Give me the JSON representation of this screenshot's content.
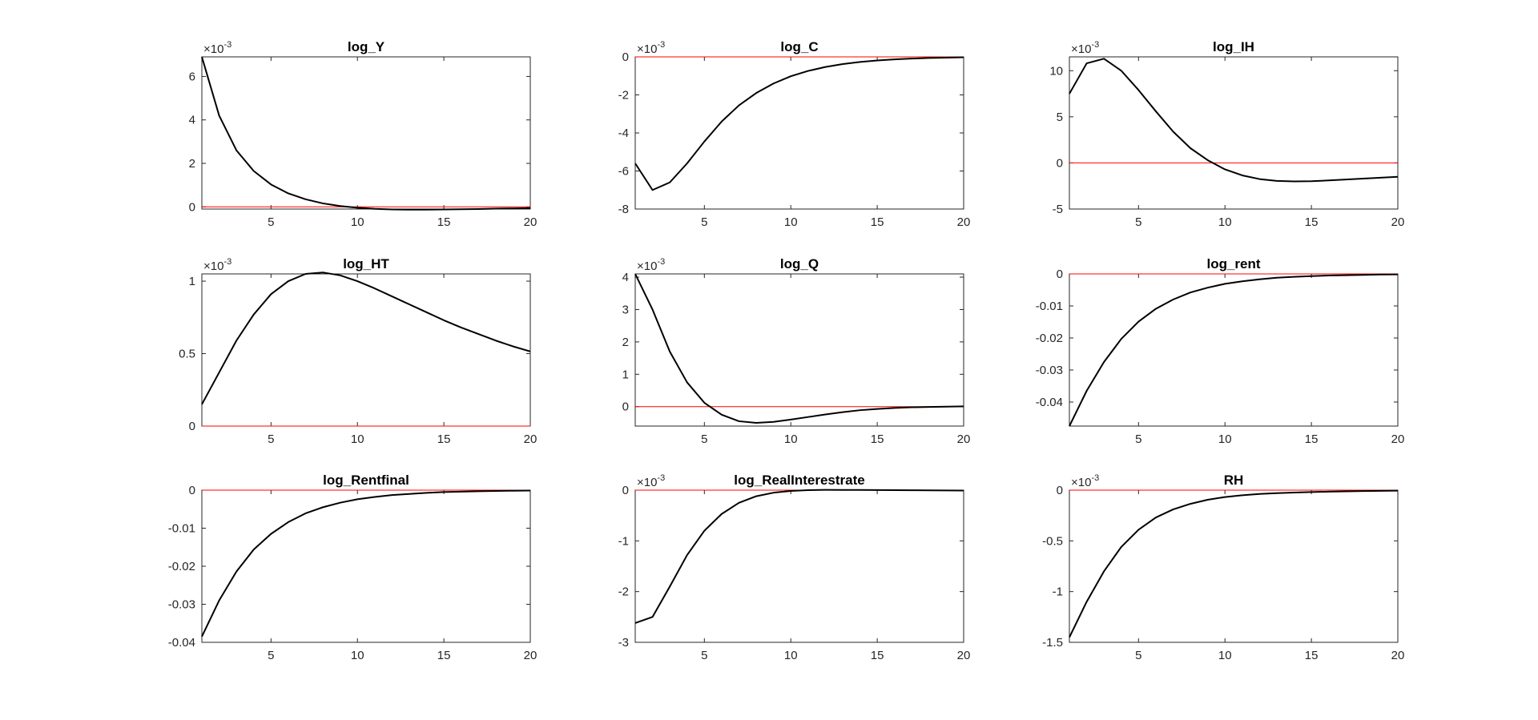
{
  "chart_data": [
    {
      "type": "line",
      "title": "log_Y",
      "exponent_label": "-3",
      "x": [
        1,
        2,
        3,
        4,
        5,
        6,
        7,
        8,
        9,
        10,
        11,
        12,
        13,
        14,
        15,
        16,
        17,
        18,
        19,
        20
      ],
      "xlim": [
        1,
        20
      ],
      "xticks": [
        5,
        10,
        15,
        20
      ],
      "ylim": [
        -0.1,
        6.9
      ],
      "yticks": [
        0,
        2,
        4,
        6
      ],
      "ytick_labels": [
        "0",
        "2",
        "4",
        "6"
      ],
      "series": [
        {
          "values": [
            6.9,
            4.2,
            2.6,
            1.65,
            1.03,
            0.62,
            0.35,
            0.16,
            0.04,
            -0.04,
            -0.09,
            -0.12,
            -0.13,
            -0.13,
            -0.12,
            -0.11,
            -0.1,
            -0.08,
            -0.07,
            -0.06
          ],
          "color": "#000000"
        },
        {
          "values": [
            0,
            0,
            0,
            0,
            0,
            0,
            0,
            0,
            0,
            0,
            0,
            0,
            0,
            0,
            0,
            0,
            0,
            0,
            0,
            0
          ],
          "color": "#ff0000"
        }
      ]
    },
    {
      "type": "line",
      "title": "log_C",
      "exponent_label": "-3",
      "x": [
        1,
        2,
        3,
        4,
        5,
        6,
        7,
        8,
        9,
        10,
        11,
        12,
        13,
        14,
        15,
        16,
        17,
        18,
        19,
        20
      ],
      "xlim": [
        1,
        20
      ],
      "xticks": [
        5,
        10,
        15,
        20
      ],
      "ylim": [
        -8,
        0
      ],
      "yticks": [
        0,
        -2,
        -4,
        -6,
        -8
      ],
      "ytick_labels": [
        "0",
        "-2",
        "-4",
        "-6",
        "-8"
      ],
      "series": [
        {
          "values": [
            -5.6,
            -7.0,
            -6.6,
            -5.6,
            -4.45,
            -3.4,
            -2.55,
            -1.9,
            -1.4,
            -1.02,
            -0.74,
            -0.53,
            -0.38,
            -0.27,
            -0.19,
            -0.13,
            -0.09,
            -0.06,
            -0.04,
            -0.02
          ],
          "color": "#000000"
        },
        {
          "values": [
            0,
            0,
            0,
            0,
            0,
            0,
            0,
            0,
            0,
            0,
            0,
            0,
            0,
            0,
            0,
            0,
            0,
            0,
            0,
            0
          ],
          "color": "#ff0000"
        }
      ]
    },
    {
      "type": "line",
      "title": "log_IH",
      "exponent_label": "-3",
      "x": [
        1,
        2,
        3,
        4,
        5,
        6,
        7,
        8,
        9,
        10,
        11,
        12,
        13,
        14,
        15,
        16,
        17,
        18,
        19,
        20
      ],
      "xlim": [
        1,
        20
      ],
      "xticks": [
        5,
        10,
        15,
        20
      ],
      "ylim": [
        -5,
        11.5
      ],
      "yticks": [
        10,
        5,
        0,
        -5
      ],
      "ytick_labels": [
        "10",
        "5",
        "0",
        "-5"
      ],
      "series": [
        {
          "values": [
            7.5,
            10.8,
            11.3,
            10.0,
            7.9,
            5.6,
            3.4,
            1.6,
            0.3,
            -0.7,
            -1.35,
            -1.75,
            -1.95,
            -2.0,
            -1.98,
            -1.9,
            -1.8,
            -1.7,
            -1.6,
            -1.5
          ],
          "color": "#000000"
        },
        {
          "values": [
            0,
            0,
            0,
            0,
            0,
            0,
            0,
            0,
            0,
            0,
            0,
            0,
            0,
            0,
            0,
            0,
            0,
            0,
            0,
            0
          ],
          "color": "#ff0000"
        }
      ]
    },
    {
      "type": "line",
      "title": "log_HT",
      "exponent_label": "-3",
      "x": [
        1,
        2,
        3,
        4,
        5,
        6,
        7,
        8,
        9,
        10,
        11,
        12,
        13,
        14,
        15,
        16,
        17,
        18,
        19,
        20
      ],
      "xlim": [
        1,
        20
      ],
      "xticks": [
        5,
        10,
        15,
        20
      ],
      "ylim": [
        0,
        1.05
      ],
      "yticks": [
        0,
        0.5,
        1
      ],
      "ytick_labels": [
        "0",
        "0.5",
        "1"
      ],
      "series": [
        {
          "values": [
            0.15,
            0.37,
            0.59,
            0.77,
            0.91,
            1.0,
            1.05,
            1.06,
            1.04,
            1.0,
            0.95,
            0.895,
            0.84,
            0.785,
            0.73,
            0.68,
            0.635,
            0.59,
            0.55,
            0.515
          ],
          "color": "#000000"
        },
        {
          "values": [
            0,
            0,
            0,
            0,
            0,
            0,
            0,
            0,
            0,
            0,
            0,
            0,
            0,
            0,
            0,
            0,
            0,
            0,
            0,
            0
          ],
          "color": "#ff0000"
        }
      ]
    },
    {
      "type": "line",
      "title": "log_Q",
      "exponent_label": "-3",
      "x": [
        1,
        2,
        3,
        4,
        5,
        6,
        7,
        8,
        9,
        10,
        11,
        12,
        13,
        14,
        15,
        16,
        17,
        18,
        19,
        20
      ],
      "xlim": [
        1,
        20
      ],
      "xticks": [
        5,
        10,
        15,
        20
      ],
      "ylim": [
        -0.6,
        4.1
      ],
      "yticks": [
        4,
        3,
        2,
        1,
        0
      ],
      "ytick_labels": [
        "4",
        "3",
        "2",
        "1",
        "0"
      ],
      "series": [
        {
          "values": [
            4.1,
            3.0,
            1.7,
            0.75,
            0.12,
            -0.25,
            -0.45,
            -0.5,
            -0.47,
            -0.4,
            -0.32,
            -0.24,
            -0.17,
            -0.11,
            -0.07,
            -0.04,
            -0.02,
            -0.01,
            0.0,
            0.01
          ],
          "color": "#000000"
        },
        {
          "values": [
            0,
            0,
            0,
            0,
            0,
            0,
            0,
            0,
            0,
            0,
            0,
            0,
            0,
            0,
            0,
            0,
            0,
            0,
            0,
            0
          ],
          "color": "#ff0000"
        }
      ]
    },
    {
      "type": "line",
      "title": "log_rent",
      "exponent_label": "",
      "x": [
        1,
        2,
        3,
        4,
        5,
        6,
        7,
        8,
        9,
        10,
        11,
        12,
        13,
        14,
        15,
        16,
        17,
        18,
        19,
        20
      ],
      "xlim": [
        1,
        20
      ],
      "xticks": [
        5,
        10,
        15,
        20
      ],
      "ylim": [
        -0.0475,
        0
      ],
      "yticks": [
        0,
        -0.01,
        -0.02,
        -0.03,
        -0.04
      ],
      "ytick_labels": [
        "0",
        "-0.01",
        "-0.02",
        "-0.03",
        "-0.04"
      ],
      "series": [
        {
          "values": [
            -0.0475,
            -0.0365,
            -0.0275,
            -0.0203,
            -0.0149,
            -0.0109,
            -0.008,
            -0.0058,
            -0.0043,
            -0.0031,
            -0.0023,
            -0.0017,
            -0.0012,
            -0.0009,
            -0.0007,
            -0.0005,
            -0.0004,
            -0.0003,
            -0.0002,
            -0.00015
          ],
          "color": "#000000"
        },
        {
          "values": [
            0,
            0,
            0,
            0,
            0,
            0,
            0,
            0,
            0,
            0,
            0,
            0,
            0,
            0,
            0,
            0,
            0,
            0,
            0,
            0
          ],
          "color": "#ff0000"
        }
      ]
    },
    {
      "type": "line",
      "title": "log_Rentfinal",
      "exponent_label": "",
      "x": [
        1,
        2,
        3,
        4,
        5,
        6,
        7,
        8,
        9,
        10,
        11,
        12,
        13,
        14,
        15,
        16,
        17,
        18,
        19,
        20
      ],
      "xlim": [
        1,
        20
      ],
      "xticks": [
        5,
        10,
        15,
        20
      ],
      "ylim": [
        -0.04,
        0
      ],
      "yticks": [
        0,
        -0.01,
        -0.02,
        -0.03,
        -0.04
      ],
      "ytick_labels": [
        "0",
        "-0.01",
        "-0.02",
        "-0.03",
        "-0.04"
      ],
      "series": [
        {
          "values": [
            -0.0385,
            -0.029,
            -0.0214,
            -0.0156,
            -0.0115,
            -0.0084,
            -0.0061,
            -0.0045,
            -0.0033,
            -0.0024,
            -0.0018,
            -0.0013,
            -0.001,
            -0.0007,
            -0.0005,
            -0.0004,
            -0.0003,
            -0.0002,
            -0.00015,
            -0.0001
          ],
          "color": "#000000"
        },
        {
          "values": [
            0,
            0,
            0,
            0,
            0,
            0,
            0,
            0,
            0,
            0,
            0,
            0,
            0,
            0,
            0,
            0,
            0,
            0,
            0,
            0
          ],
          "color": "#ff0000"
        }
      ]
    },
    {
      "type": "line",
      "title": "log_RealInterestrate",
      "exponent_label": "-3",
      "x": [
        1,
        2,
        3,
        4,
        5,
        6,
        7,
        8,
        9,
        10,
        11,
        12,
        13,
        14,
        15,
        16,
        17,
        18,
        19,
        20
      ],
      "xlim": [
        1,
        20
      ],
      "xticks": [
        5,
        10,
        15,
        20
      ],
      "ylim": [
        -3,
        0
      ],
      "yticks": [
        0,
        -1,
        -2,
        -3
      ],
      "ytick_labels": [
        "0",
        "-1",
        "-2",
        "-3"
      ],
      "series": [
        {
          "values": [
            -2.62,
            -2.5,
            -1.9,
            -1.28,
            -0.8,
            -0.47,
            -0.25,
            -0.12,
            -0.05,
            -0.015,
            0.0,
            0.005,
            0.004,
            0.003,
            0.002,
            0.0,
            -0.002,
            -0.004,
            -0.006,
            -0.008
          ],
          "color": "#000000"
        },
        {
          "values": [
            0,
            0,
            0,
            0,
            0,
            0,
            0,
            0,
            0,
            0,
            0,
            0,
            0,
            0,
            0,
            0,
            0,
            0,
            0,
            0
          ],
          "color": "#ff0000"
        }
      ]
    },
    {
      "type": "line",
      "title": "RH",
      "exponent_label": "-3",
      "x": [
        1,
        2,
        3,
        4,
        5,
        6,
        7,
        8,
        9,
        10,
        11,
        12,
        13,
        14,
        15,
        16,
        17,
        18,
        19,
        20
      ],
      "xlim": [
        1,
        20
      ],
      "xticks": [
        5,
        10,
        15,
        20
      ],
      "ylim": [
        -1.5,
        0
      ],
      "yticks": [
        0,
        -0.5,
        -1,
        -1.5
      ],
      "ytick_labels": [
        "0",
        "-0.5",
        "-1",
        "-1.5"
      ],
      "series": [
        {
          "values": [
            -1.45,
            -1.1,
            -0.8,
            -0.56,
            -0.39,
            -0.27,
            -0.19,
            -0.135,
            -0.095,
            -0.068,
            -0.05,
            -0.038,
            -0.03,
            -0.024,
            -0.019,
            -0.015,
            -0.012,
            -0.009,
            -0.007,
            -0.005
          ],
          "color": "#000000"
        },
        {
          "values": [
            0,
            0,
            0,
            0,
            0,
            0,
            0,
            0,
            0,
            0,
            0,
            0,
            0,
            0,
            0,
            0,
            0,
            0,
            0,
            0
          ],
          "color": "#ff0000"
        }
      ]
    }
  ]
}
